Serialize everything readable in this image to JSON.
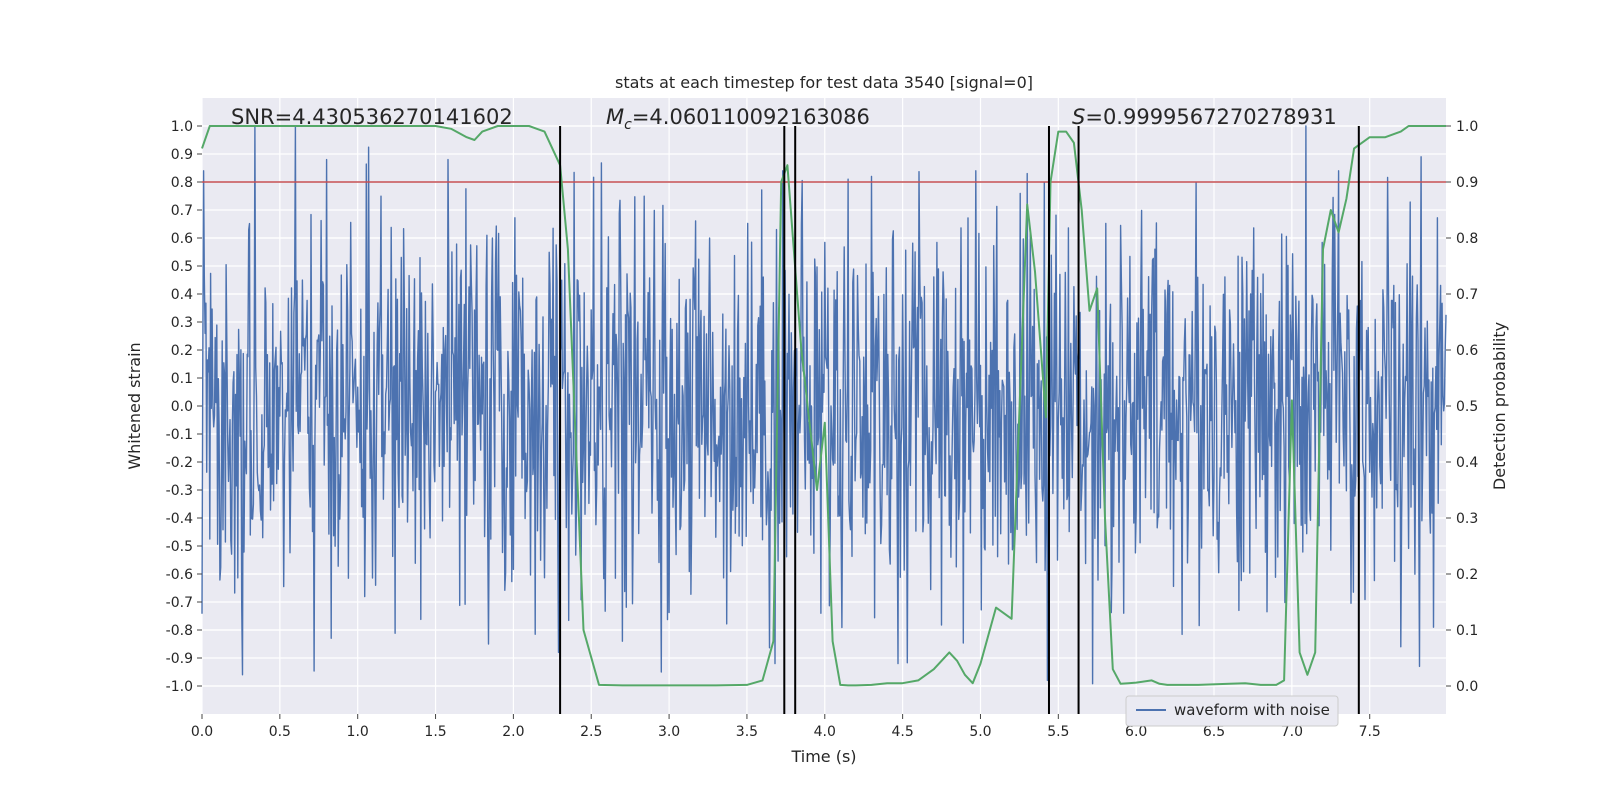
{
  "chart_data": {
    "type": "line",
    "title": "stats at each timestep for test data 3540 [signal=0]",
    "xlabel": "Time (s)",
    "ylabel_left": "Whitened strain",
    "ylabel_right": "Detection probability",
    "xlim": [
      0.0,
      7.99
    ],
    "ylim_left": [
      -1.1,
      1.1
    ],
    "ylim_right": [
      -0.05,
      1.05
    ],
    "x_ticks": [
      "0.0",
      "0.5",
      "1.0",
      "1.5",
      "2.0",
      "2.5",
      "3.0",
      "3.5",
      "4.0",
      "4.5",
      "5.0",
      "5.5",
      "6.0",
      "6.5",
      "7.0",
      "7.5"
    ],
    "y_left_ticks": [
      "1.0",
      "0.9",
      "0.8",
      "0.7",
      "0.6",
      "0.5",
      "0.4",
      "0.3",
      "0.2",
      "0.1",
      "0.0",
      "-0.1",
      "-0.2",
      "-0.3",
      "-0.4",
      "-0.5",
      "-0.6",
      "-0.7",
      "-0.8",
      "-0.9",
      "-1.0"
    ],
    "y_right_ticks": [
      "1.0",
      "0.9",
      "0.8",
      "0.7",
      "0.6",
      "0.5",
      "0.4",
      "0.3",
      "0.2",
      "0.1",
      "0.0"
    ],
    "grid": true,
    "legend": {
      "placement": "lower-right",
      "entries": [
        {
          "label": "waveform with noise",
          "color": "#4c72b0"
        }
      ]
    },
    "annotations": {
      "snr": "SNR=4.430536270141602",
      "mc_symbol": "M",
      "mc_subscript": "c",
      "mc_value": "=4.060110092163086",
      "s_symbol": "S",
      "s_value": "=0.9999567270278931"
    },
    "threshold": {
      "value": 0.8,
      "axis": "left",
      "color": "#c44e52"
    },
    "vertical_lines": [
      2.3,
      3.74,
      3.81,
      5.44,
      5.63,
      7.43
    ],
    "vertical_line_range": [
      -0.05,
      1.0
    ],
    "series": [
      {
        "name": "waveform with noise",
        "axis": "left",
        "color": "#4c72b0",
        "sample_rate": 200,
        "envelope": {
          "mean_abs": 0.27,
          "clip": 1.0
        },
        "notable_peaks": [
          {
            "x": 0.01,
            "y": 0.84
          },
          {
            "x": 0.26,
            "y": -0.96
          },
          {
            "x": 0.34,
            "y": 1.0
          },
          {
            "x": 0.6,
            "y": 1.0
          },
          {
            "x": 1.58,
            "y": 0.88
          },
          {
            "x": 1.84,
            "y": -0.85
          },
          {
            "x": 2.29,
            "y": -0.88
          },
          {
            "x": 2.7,
            "y": -0.84
          },
          {
            "x": 2.95,
            "y": -0.95
          },
          {
            "x": 3.68,
            "y": -0.92
          },
          {
            "x": 3.73,
            "y": 0.84
          },
          {
            "x": 4.15,
            "y": 0.81
          },
          {
            "x": 4.3,
            "y": 0.82
          },
          {
            "x": 4.47,
            "y": -0.92
          },
          {
            "x": 4.97,
            "y": 0.84
          },
          {
            "x": 5.3,
            "y": 0.83
          },
          {
            "x": 5.43,
            "y": -0.98
          },
          {
            "x": 5.92,
            "y": -0.74
          },
          {
            "x": 7.3,
            "y": 0.84
          },
          {
            "x": 7.7,
            "y": -0.86
          },
          {
            "x": 7.83,
            "y": 0.89
          },
          {
            "x": 7.82,
            "y": -0.93
          }
        ]
      },
      {
        "name": "",
        "axis": "right",
        "color": "#55a868",
        "x": [
          0.0,
          0.05,
          0.1,
          0.2,
          0.3,
          0.5,
          0.8,
          1.0,
          1.2,
          1.5,
          1.6,
          1.7,
          1.75,
          1.8,
          1.9,
          2.0,
          2.1,
          2.2,
          2.3,
          2.35,
          2.45,
          2.55,
          2.7,
          3.0,
          3.3,
          3.5,
          3.6,
          3.67,
          3.72,
          3.76,
          3.85,
          3.95,
          4.0,
          4.05,
          4.1,
          4.15,
          4.2,
          4.3,
          4.4,
          4.5,
          4.6,
          4.7,
          4.8,
          4.85,
          4.9,
          4.95,
          5.0,
          5.1,
          5.2,
          5.3,
          5.35,
          5.42,
          5.45,
          5.5,
          5.55,
          5.6,
          5.65,
          5.7,
          5.75,
          5.8,
          5.85,
          5.9,
          5.95,
          6.0,
          6.1,
          6.15,
          6.2,
          6.4,
          6.6,
          6.7,
          6.8,
          6.9,
          6.95,
          7.0,
          7.05,
          7.1,
          7.15,
          7.2,
          7.25,
          7.3,
          7.35,
          7.4,
          7.5,
          7.6,
          7.7,
          7.75,
          7.8,
          7.9,
          7.99
        ],
        "y": [
          0.96,
          1.0,
          1.0,
          1.0,
          1.0,
          1.0,
          1.0,
          1.0,
          1.0,
          1.0,
          0.995,
          0.98,
          0.975,
          0.99,
          1.0,
          1.0,
          1.0,
          0.99,
          0.93,
          0.78,
          0.1,
          0.002,
          0.001,
          0.001,
          0.001,
          0.002,
          0.01,
          0.08,
          0.9,
          0.93,
          0.6,
          0.35,
          0.47,
          0.08,
          0.002,
          0.001,
          0.001,
          0.002,
          0.005,
          0.005,
          0.01,
          0.03,
          0.06,
          0.045,
          0.02,
          0.005,
          0.04,
          0.14,
          0.12,
          0.86,
          0.74,
          0.48,
          0.9,
          0.99,
          0.99,
          0.97,
          0.85,
          0.67,
          0.71,
          0.3,
          0.03,
          0.004,
          0.005,
          0.006,
          0.01,
          0.004,
          0.002,
          0.002,
          0.004,
          0.005,
          0.002,
          0.002,
          0.01,
          0.51,
          0.06,
          0.02,
          0.06,
          0.78,
          0.85,
          0.81,
          0.87,
          0.96,
          0.98,
          0.98,
          0.99,
          1.0,
          1.0,
          1.0,
          1.0
        ]
      }
    ]
  }
}
